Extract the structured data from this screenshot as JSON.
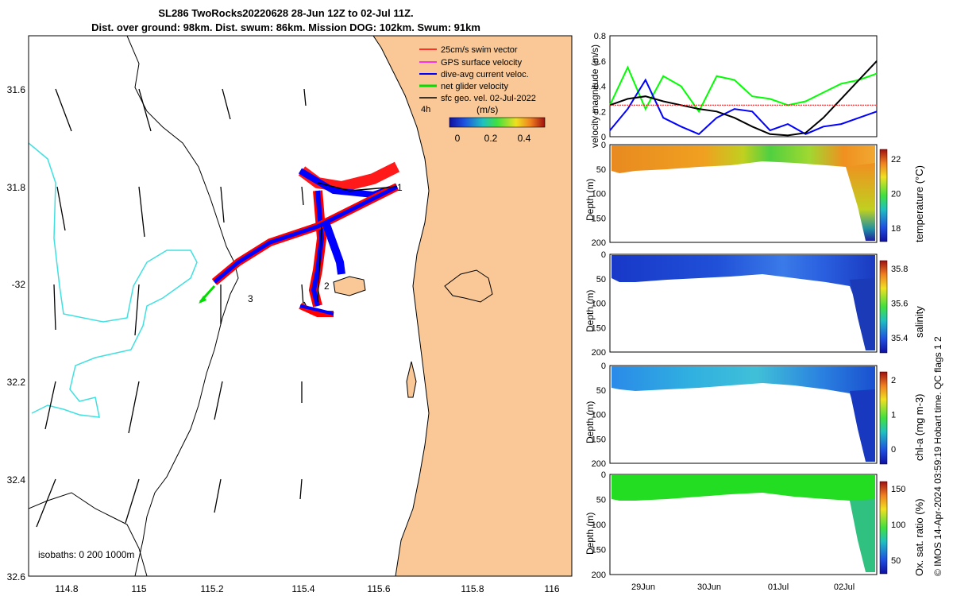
{
  "header": {
    "line1": "SL286 TwoRocks20220628 28-Jun 12Z to 02-Jul 11Z.",
    "line2": "Dist. over ground: 98km. Dist. swum: 86km. Mission DOG: 102km. Swum: 91km"
  },
  "map": {
    "lon_ticks": [
      "114.8",
      "115",
      "115.2",
      "115.4",
      "115.6",
      "115.8",
      "116"
    ],
    "lat_ticks": [
      "31.6",
      "31.8",
      "-32",
      "32.2",
      "32.4",
      "32.6"
    ],
    "isobath_label": "isobaths: 0   200  1000m",
    "legend": [
      {
        "label": "25cm/s swim vector",
        "color": "#ff0000"
      },
      {
        "label": "GPS surface velocity",
        "color": "#ff00ff"
      },
      {
        "label": "dive-avg current veloc.",
        "color": "#0000ff"
      },
      {
        "label": "net glider velocity",
        "color": "#00dd00"
      },
      {
        "label": "sfc geo. vel. 02-Jul-2022",
        "color": "#000000"
      }
    ],
    "interval_label": "4h",
    "colorbar_unit": "(m/s)",
    "colorbar_ticks": [
      "0",
      "0.2",
      "0.4"
    ],
    "markers": [
      "1",
      "2",
      "3"
    ],
    "colors": {
      "land": "#f9c896",
      "isobath": "#40e0e0",
      "track": "#0000ff",
      "swim": "#ff0000"
    }
  },
  "chart_data": [
    {
      "type": "line",
      "title": "",
      "ylabel": "velocity magnitude (m/s)",
      "ylim": [
        0,
        0.8
      ],
      "yticks": [
        "0",
        "0.2",
        "0.4",
        "0.6",
        "0.8"
      ],
      "x_days": [
        0,
        0.25,
        0.5,
        0.75,
        1,
        1.25,
        1.5,
        1.75,
        2,
        2.25,
        2.5,
        2.75,
        3,
        3.25,
        3.5,
        3.75
      ],
      "series": [
        {
          "color": "#00ff00",
          "values": [
            0.25,
            0.55,
            0.22,
            0.48,
            0.4,
            0.2,
            0.48,
            0.45,
            0.32,
            0.3,
            0.25,
            0.28,
            0.35,
            0.42,
            0.45,
            0.5
          ]
        },
        {
          "color": "#0000ff",
          "values": [
            0.05,
            0.22,
            0.45,
            0.15,
            0.08,
            0.02,
            0.15,
            0.22,
            0.2,
            0.05,
            0.1,
            0.02,
            0.08,
            0.1,
            0.15,
            0.2
          ]
        },
        {
          "color": "#000000",
          "values": [
            0.25,
            0.3,
            0.32,
            0.28,
            0.25,
            0.22,
            0.2,
            0.15,
            0.08,
            0.02,
            0.01,
            0.03,
            0.15,
            0.3,
            0.45,
            0.6
          ]
        },
        {
          "color": "#ff0000",
          "values": [
            0.25,
            0.25,
            0.25,
            0.25,
            0.25,
            0.25,
            0.25,
            0.25,
            0.25,
            0.25,
            0.25,
            0.25,
            0.25,
            0.25,
            0.25,
            0.25
          ]
        }
      ]
    },
    {
      "type": "heatmap",
      "title": "",
      "ylabel": "Depth (m)",
      "clabel": "temperature (°C)",
      "ylim": [
        0,
        200
      ],
      "yticks": [
        "0",
        "50",
        "100",
        "150",
        "200"
      ],
      "cticks": [
        "18",
        "20",
        "22"
      ]
    },
    {
      "type": "heatmap",
      "title": "",
      "ylabel": "Depth (m)",
      "clabel": "salinity",
      "ylim": [
        0,
        200
      ],
      "yticks": [
        "0",
        "50",
        "100",
        "150",
        "200"
      ],
      "cticks": [
        "35.4",
        "35.6",
        "35.8"
      ]
    },
    {
      "type": "heatmap",
      "title": "",
      "ylabel": "Depth (m)",
      "clabel": "chl-a (mg m-3)",
      "ylim": [
        0,
        200
      ],
      "yticks": [
        "0",
        "50",
        "100",
        "150",
        "200"
      ],
      "cticks": [
        "0",
        "1",
        "2"
      ]
    },
    {
      "type": "heatmap",
      "title": "",
      "ylabel": "Depth (m)",
      "clabel": "Ox. sat. ratio (%)",
      "ylim": [
        0,
        200
      ],
      "yticks": [
        "0",
        "50",
        "100",
        "150",
        "200"
      ],
      "cticks": [
        "50",
        "100",
        "150"
      ]
    }
  ],
  "time_axis": {
    "labels": [
      "29Jun",
      "30Jun",
      "01Jul",
      "02Jul"
    ]
  },
  "credit": "© IMOS 14-Apr-2024 03:59:19 Hobart time. QC flags 1  2"
}
